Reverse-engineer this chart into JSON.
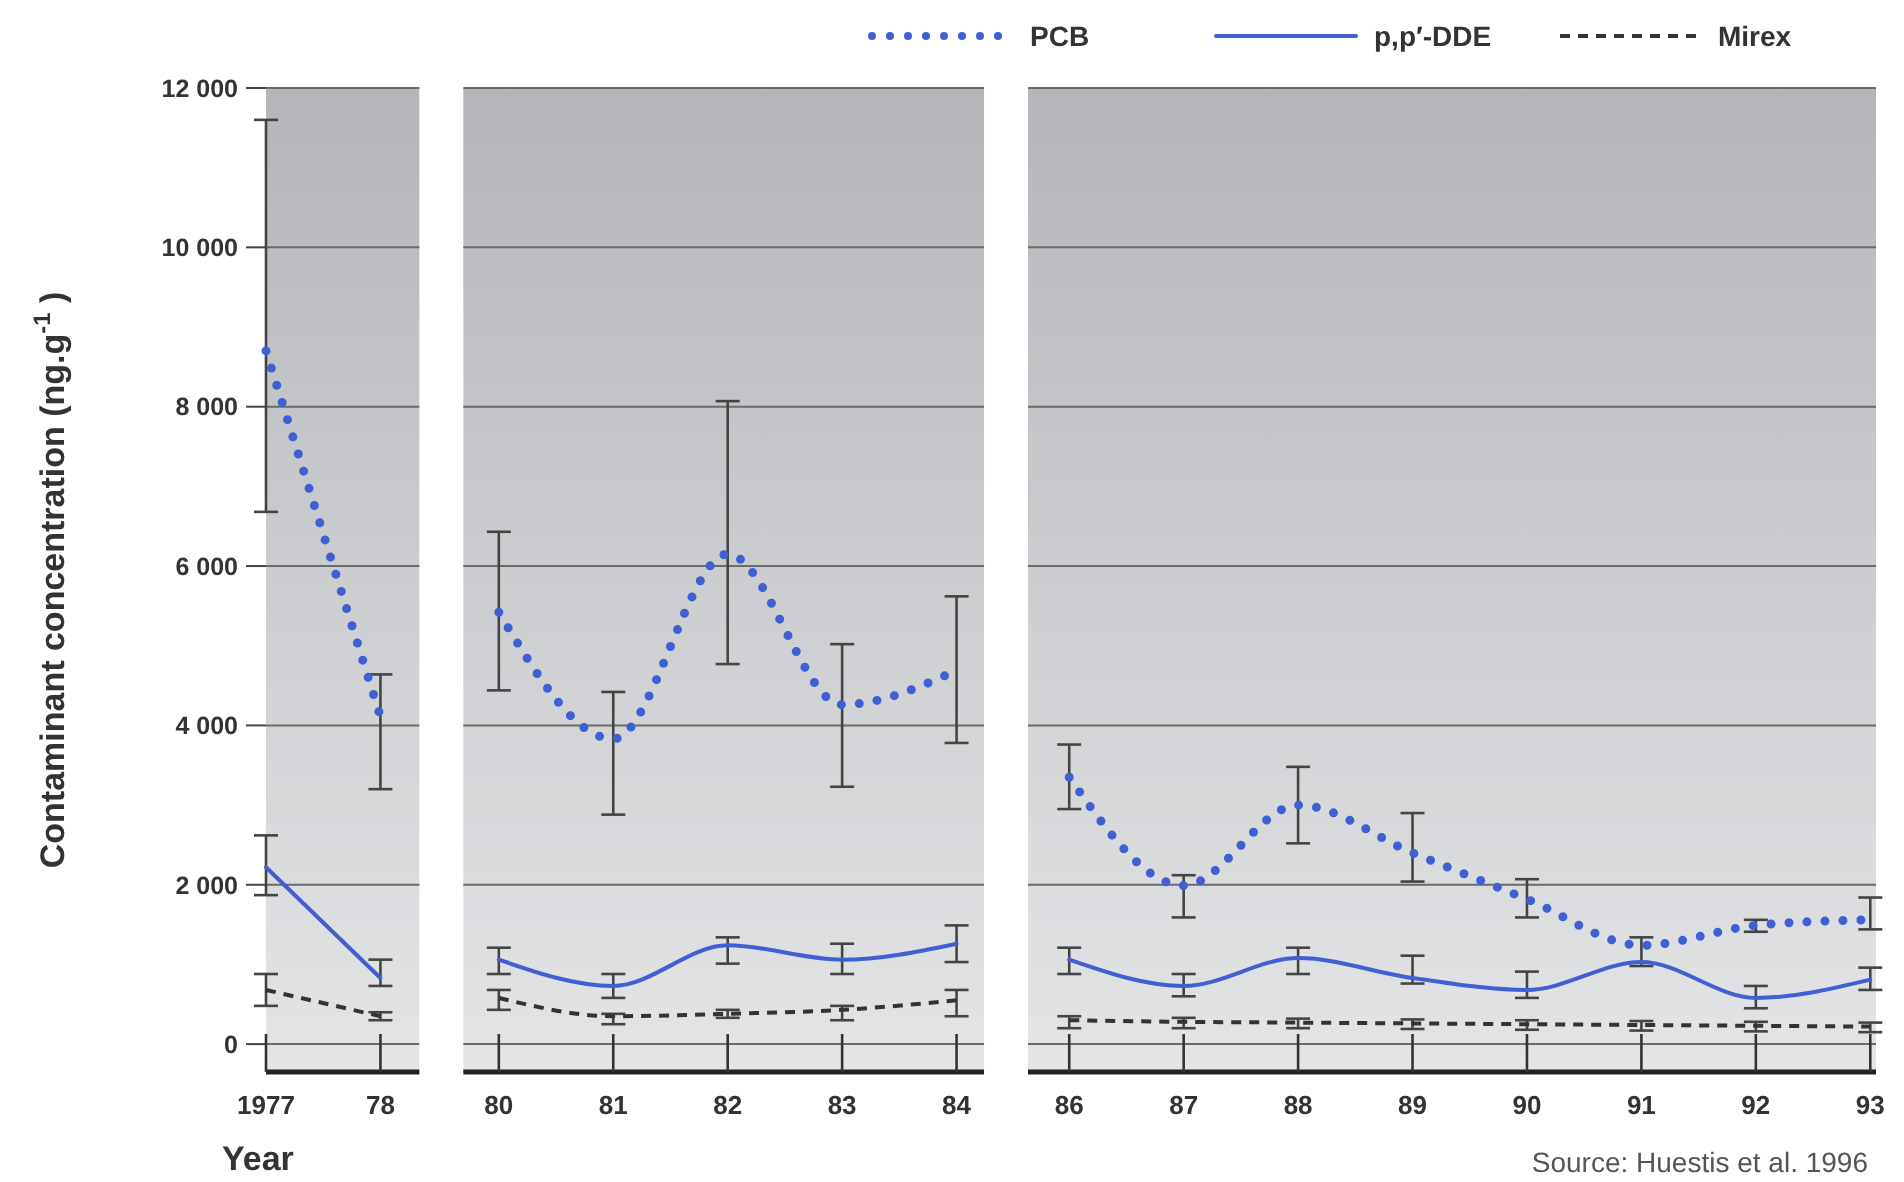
{
  "chart_data": [
    {
      "type": "line",
      "ylabel": "Contaminant concentration (ng.g$^{-1}$ )",
      "xlabel": "Year",
      "legend": "top right",
      "grid": "y",
      "x": [
        1977,
        1978
      ],
      "xlim": [
        1977,
        1978.34
      ],
      "xticks": [
        {
          "value": 1977,
          "label": "1977"
        },
        {
          "value": 1978,
          "label": "78"
        }
      ],
      "ylim": [
        -350,
        12000
      ],
      "yticks": [
        {
          "value": 0,
          "label": "0"
        },
        {
          "value": 2000,
          "label": "2 000"
        },
        {
          "value": 4000,
          "label": "4 000"
        },
        {
          "value": 6000,
          "label": "6 000"
        },
        {
          "value": 8000,
          "label": "8 000"
        },
        {
          "value": 10000,
          "label": "10 000"
        },
        {
          "value": 12000,
          "label": "12 000"
        }
      ],
      "series": [
        {
          "name": "PCB",
          "color": "#3f5fd2",
          "line_style": "dotted",
          "values": [
            8700,
            4110
          ],
          "errors": [
            [
              6680,
              11600
            ],
            [
              3200,
              4640
            ]
          ]
        },
        {
          "name": "p,p′-DDE",
          "color": "#3f5fd2",
          "line_style": "solid",
          "values": [
            2220,
            830
          ],
          "errors": [
            [
              1870,
              2620
            ],
            [
              730,
              1060
            ]
          ]
        },
        {
          "name": "Mirex",
          "color": "#333333",
          "line_style": "dashed",
          "values": [
            680,
            350
          ],
          "errors": [
            [
              480,
              880
            ],
            [
              300,
              400
            ]
          ]
        }
      ]
    },
    {
      "type": "line",
      "grid": "y",
      "tick_labels": "x",
      "x": [
        1980,
        1981,
        1982,
        1983,
        1984
      ],
      "xlim": [
        1979.69,
        1984.24
      ],
      "xticks": [
        {
          "value": 1980,
          "label": "80"
        },
        {
          "value": 1981,
          "label": "81"
        },
        {
          "value": 1982,
          "label": "82"
        },
        {
          "value": 1983,
          "label": "83"
        },
        {
          "value": 1984,
          "label": "84"
        }
      ],
      "ylim": [
        -350,
        12000
      ],
      "yticks": [
        0,
        2000,
        4000,
        6000,
        8000,
        10000,
        12000
      ],
      "series": [
        {
          "color": "#3f5fd2",
          "line_style": "dotted",
          "values": [
            5420,
            3830,
            6150,
            4260,
            4690
          ],
          "errors": [
            [
              4440,
              6430
            ],
            [
              2880,
              4420
            ],
            [
              4770,
              8070
            ],
            [
              3230,
              5020
            ],
            [
              3780,
              5620
            ]
          ]
        },
        {
          "color": "#3f5fd2",
          "line_style": "solid",
          "values": [
            1060,
            730,
            1240,
            1060,
            1260
          ],
          "errors": [
            [
              880,
              1210
            ],
            [
              580,
              880
            ],
            [
              1010,
              1340
            ],
            [
              880,
              1260
            ],
            [
              1030,
              1490
            ]
          ]
        },
        {
          "color": "#333333",
          "line_style": "dashed",
          "values": [
            580,
            350,
            380,
            430,
            550
          ],
          "errors": [
            [
              430,
              680
            ],
            [
              250,
              380
            ],
            [
              330,
              430
            ],
            [
              300,
              480
            ],
            [
              350,
              680
            ]
          ]
        }
      ]
    },
    {
      "type": "line",
      "grid": "y",
      "tick_labels": "x",
      "annotations": [
        "Source: Huestis et al. 1996"
      ],
      "x": [
        1986,
        1987,
        1988,
        1989,
        1990,
        1991,
        1992,
        1993
      ],
      "xlim": [
        1985.64,
        1993.05
      ],
      "xticks": [
        {
          "value": 1986,
          "label": "86"
        },
        {
          "value": 1987,
          "label": "87"
        },
        {
          "value": 1988,
          "label": "88"
        },
        {
          "value": 1989,
          "label": "89"
        },
        {
          "value": 1990,
          "label": "90"
        },
        {
          "value": 1991,
          "label": "91"
        },
        {
          "value": 1992,
          "label": "92"
        },
        {
          "value": 1993,
          "label": "93"
        }
      ],
      "ylim": [
        -350,
        12000
      ],
      "yticks": [
        0,
        2000,
        4000,
        6000,
        8000,
        10000,
        12000
      ],
      "series": [
        {
          "color": "#3f5fd2",
          "line_style": "dotted",
          "values": [
            3350,
            1990,
            3000,
            2400,
            1820,
            1240,
            1490,
            1560
          ],
          "errors": [
            [
              2950,
              3760
            ],
            [
              1590,
              2120
            ],
            [
              2520,
              3480
            ],
            [
              2040,
              2900
            ],
            [
              1590,
              2070
            ],
            null,
            [
              1410,
              1560
            ],
            [
              1440,
              1840
            ]
          ]
        },
        {
          "color": "#3f5fd2",
          "line_style": "solid",
          "values": [
            1060,
            730,
            1080,
            830,
            680,
            1030,
            580,
            810
          ],
          "errors": [
            [
              880,
              1210
            ],
            [
              600,
              880
            ],
            [
              880,
              1210
            ],
            [
              760,
              1110
            ],
            [
              580,
              910
            ],
            [
              980,
              1340
            ],
            [
              450,
              730
            ],
            [
              680,
              960
            ]
          ]
        },
        {
          "color": "#333333",
          "line_style": "dashed",
          "values": [
            300,
            280,
            270,
            260,
            250,
            240,
            230,
            220
          ],
          "errors": [
            [
              200,
              350
            ],
            [
              200,
              330
            ],
            [
              200,
              320
            ],
            [
              190,
              310
            ],
            [
              180,
              300
            ],
            [
              170,
              290
            ],
            [
              160,
              280
            ],
            [
              150,
              270
            ]
          ]
        }
      ]
    }
  ]
}
